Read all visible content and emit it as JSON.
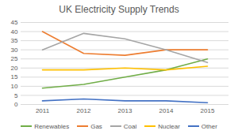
{
  "chart_data": {
    "type": "line",
    "title": "UK Electricity Supply Trends",
    "categories": [
      "2011",
      "2012",
      "2013",
      "2014",
      "2015"
    ],
    "series": [
      {
        "name": "Renewables",
        "color": "#70ad47",
        "values": [
          9,
          11,
          15,
          19,
          25
        ]
      },
      {
        "name": "Gas",
        "color": "#ed7d31",
        "values": [
          40,
          28,
          27,
          30,
          30
        ]
      },
      {
        "name": "Coal",
        "color": "#a5a5a5",
        "values": [
          30,
          39,
          36,
          30,
          23
        ]
      },
      {
        "name": "Nuclear",
        "color": "#ffc000",
        "values": [
          19,
          19,
          20,
          19,
          21
        ]
      },
      {
        "name": "Other",
        "color": "#4472c4",
        "values": [
          2,
          3,
          2,
          2,
          1
        ]
      }
    ],
    "ylim": [
      0,
      45
    ],
    "yticks": [
      0,
      5,
      10,
      15,
      20,
      25,
      30,
      35,
      40,
      45
    ],
    "grid": true,
    "legend": "bottom"
  }
}
